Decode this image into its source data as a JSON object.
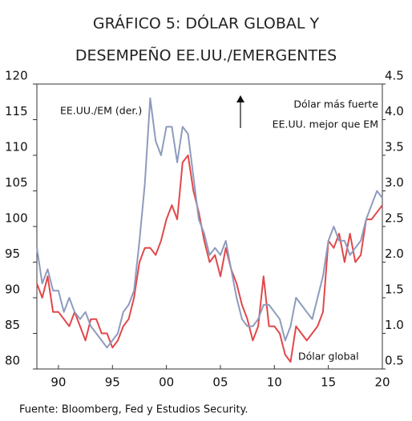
{
  "chart_data": {
    "type": "line",
    "title": [
      "GRÁFICO 5: DÓLAR GLOBAL Y",
      "DESEMPEÑO EE.UU./EMERGENTES"
    ],
    "annotations": [
      "Dólar más fuerte",
      "EE.UU. mejor que EM"
    ],
    "source": "Fuente: Bloomberg, Fed y Estudios Security.",
    "x": [
      1988,
      1988.5,
      1989,
      1989.5,
      1990,
      1990.5,
      1991,
      1991.5,
      1992,
      1992.5,
      1993,
      1993.5,
      1994,
      1994.5,
      1995,
      1995.5,
      1996,
      1996.5,
      1997,
      1997.5,
      1998,
      1998.5,
      1999,
      1999.5,
      2000,
      2000.5,
      2001,
      2001.5,
      2002,
      2002.5,
      2003,
      2003.5,
      2004,
      2004.5,
      2005,
      2005.5,
      2006,
      2006.5,
      2007,
      2007.5,
      2008,
      2008.5,
      2009,
      2009.5,
      2010,
      2010.5,
      2011,
      2011.5,
      2012,
      2012.5,
      2013,
      2013.5,
      2014,
      2014.5,
      2015,
      2015.5,
      2016,
      2016.5,
      2017,
      2017.5,
      2018,
      2018.5,
      2019,
      2019.5,
      2020
    ],
    "series": [
      {
        "name": "Dólar global",
        "color": "#e2474a",
        "axis": "y",
        "values": [
          92,
          90,
          93,
          88,
          88,
          87,
          86,
          88,
          86,
          84,
          87,
          87,
          85,
          85,
          83,
          84,
          86,
          87,
          90,
          95,
          97,
          97,
          96,
          98,
          101,
          103,
          101,
          109,
          110,
          105,
          102,
          98,
          95,
          96,
          93,
          97,
          94,
          92,
          89,
          87,
          84,
          86,
          93,
          86,
          86,
          85,
          82,
          81,
          86,
          85,
          84,
          85,
          86,
          88,
          98,
          97,
          99,
          95,
          99,
          95,
          96,
          101,
          101,
          102,
          103
        ]
      },
      {
        "name": "EE.UU./EM (der.)",
        "color": "#8e9bbd",
        "axis": "y2",
        "values": [
          2.2,
          1.7,
          1.9,
          1.6,
          1.6,
          1.3,
          1.5,
          1.3,
          1.2,
          1.3,
          1.1,
          1.0,
          0.9,
          0.8,
          0.9,
          1.0,
          1.3,
          1.4,
          1.6,
          2.3,
          3.1,
          4.3,
          3.7,
          3.5,
          3.9,
          3.9,
          3.4,
          3.9,
          3.8,
          3.2,
          2.6,
          2.4,
          2.1,
          2.2,
          2.1,
          2.3,
          1.9,
          1.5,
          1.2,
          1.1,
          1.1,
          1.2,
          1.4,
          1.4,
          1.3,
          1.2,
          0.9,
          1.1,
          1.5,
          1.4,
          1.3,
          1.2,
          1.5,
          1.8,
          2.3,
          2.5,
          2.3,
          2.3,
          2.1,
          2.2,
          2.3,
          2.6,
          2.8,
          3.0,
          2.9
        ]
      }
    ],
    "xlim": [
      1988,
      2020
    ],
    "xticks": [
      {
        "value": 1990,
        "label": "90"
      },
      {
        "value": 1995,
        "label": "95"
      },
      {
        "value": 2000,
        "label": "00"
      },
      {
        "value": 2005,
        "label": "05"
      },
      {
        "value": 2010,
        "label": "10"
      },
      {
        "value": 2015,
        "label": "15"
      },
      {
        "value": 2020,
        "label": "20"
      }
    ],
    "ylim": [
      80,
      120
    ],
    "yticks": [
      80,
      85,
      90,
      95,
      100,
      105,
      110,
      115,
      120
    ],
    "y2lim": [
      0.5,
      4.5
    ],
    "y2ticks": [
      0.5,
      {
        "value": 1,
        "label": "1.0"
      },
      1.5,
      {
        "value": 2,
        "label": "2.0"
      },
      2.5,
      {
        "value": 3,
        "label": "3.0"
      },
      3.5,
      {
        "value": 4,
        "label": "4.0"
      },
      4.5
    ]
  }
}
